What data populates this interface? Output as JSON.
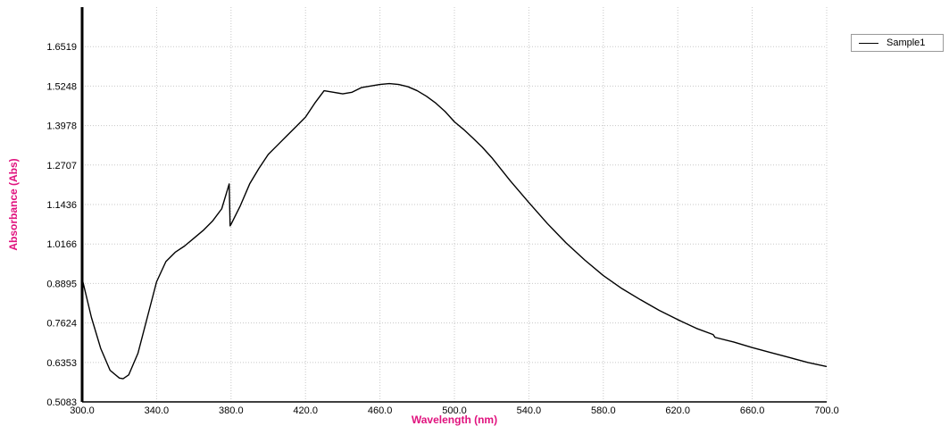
{
  "chart_data": {
    "type": "line",
    "xlabel": "Wavelength (nm)",
    "ylabel": "Absorbance (Abs)",
    "xlim": [
      300.0,
      700.0
    ],
    "ylim": [
      0.5083,
      1.779
    ],
    "x_ticks": [
      "300.0",
      "340.0",
      "380.0",
      "420.0",
      "460.0",
      "500.0",
      "540.0",
      "580.0",
      "620.0",
      "660.0",
      "700.0"
    ],
    "x_tick_values": [
      300,
      340,
      380,
      420,
      460,
      500,
      540,
      580,
      620,
      660,
      700
    ],
    "y_ticks": [
      "0.5083",
      "0.6353",
      "0.7624",
      "0.8895",
      "1.0166",
      "1.1436",
      "1.2707",
      "1.3978",
      "1.5248",
      "1.6519"
    ],
    "y_tick_values": [
      0.5083,
      0.6353,
      0.7624,
      0.8895,
      1.0166,
      1.1436,
      1.2707,
      1.3978,
      1.5248,
      1.6519
    ],
    "grid": true,
    "legend_position": "top-right",
    "series": [
      {
        "name": "Sample1",
        "color": "#000000",
        "x": [
          300,
          305,
          310,
          315,
          320,
          322,
          325,
          330,
          335,
          340,
          345,
          350,
          355,
          360,
          365,
          370,
          375,
          379,
          379.5,
          380,
          385,
          390,
          395,
          400,
          405,
          410,
          415,
          420,
          425,
          430,
          435,
          440,
          445,
          450,
          455,
          460,
          465,
          470,
          475,
          480,
          485,
          490,
          495,
          500,
          505,
          510,
          515,
          520,
          530,
          540,
          550,
          560,
          570,
          580,
          590,
          600,
          610,
          620,
          630,
          639,
          640,
          650,
          660,
          670,
          680,
          690,
          700
        ],
        "values": [
          0.905,
          0.78,
          0.68,
          0.61,
          0.585,
          0.583,
          0.595,
          0.665,
          0.78,
          0.895,
          0.96,
          0.99,
          1.01,
          1.035,
          1.06,
          1.09,
          1.13,
          1.21,
          1.075,
          1.08,
          1.14,
          1.21,
          1.26,
          1.305,
          1.335,
          1.365,
          1.395,
          1.425,
          1.47,
          1.51,
          1.505,
          1.5,
          1.505,
          1.52,
          1.525,
          1.53,
          1.533,
          1.53,
          1.523,
          1.51,
          1.492,
          1.47,
          1.443,
          1.41,
          1.385,
          1.357,
          1.328,
          1.295,
          1.22,
          1.15,
          1.082,
          1.02,
          0.965,
          0.915,
          0.873,
          0.837,
          0.803,
          0.773,
          0.745,
          0.725,
          0.716,
          0.701,
          0.683,
          0.667,
          0.651,
          0.635,
          0.622
        ]
      }
    ]
  }
}
